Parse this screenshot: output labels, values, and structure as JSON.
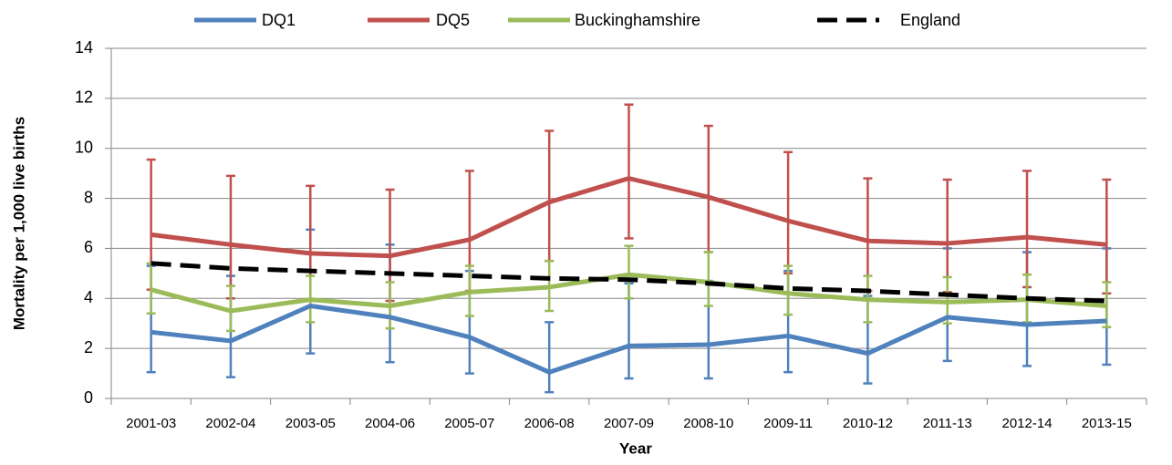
{
  "chart_data": {
    "type": "line",
    "y_label": "Mortality per 1,000 live births",
    "x_label": "Year",
    "categories": [
      "2001-03",
      "2002-04",
      "2003-05",
      "2004-06",
      "2005-07",
      "2006-08",
      "2007-09",
      "2008-10",
      "2009-11",
      "2010-12",
      "2011-13",
      "2012-14",
      "2013-15"
    ],
    "ylim": [
      0,
      14
    ],
    "yticks": [
      0,
      2,
      4,
      6,
      8,
      10,
      12,
      14
    ],
    "grid": true,
    "legend": "top",
    "series": [
      {
        "name": "DQ1",
        "color": "#4f81bd",
        "dashed": false,
        "values": [
          2.65,
          2.3,
          3.7,
          3.25,
          2.45,
          1.05,
          2.1,
          2.15,
          2.5,
          1.8,
          3.25,
          2.95,
          3.1
        ],
        "lower": [
          1.05,
          0.85,
          1.8,
          1.45,
          1.0,
          0.25,
          0.8,
          0.8,
          1.05,
          0.6,
          1.5,
          1.3,
          1.35
        ],
        "upper": [
          5.3,
          4.9,
          6.75,
          6.15,
          5.1,
          3.05,
          4.6,
          4.7,
          5.1,
          4.1,
          6.0,
          5.85,
          6.0
        ]
      },
      {
        "name": "DQ5",
        "color": "#c0504d",
        "dashed": false,
        "values": [
          6.55,
          6.15,
          5.8,
          5.7,
          6.35,
          7.85,
          8.8,
          8.05,
          7.1,
          6.3,
          6.2,
          6.45,
          6.15
        ],
        "lower": [
          4.35,
          4.0,
          3.9,
          3.9,
          4.3,
          5.5,
          6.4,
          5.85,
          5.0,
          4.3,
          4.25,
          4.45,
          4.2
        ],
        "upper": [
          9.55,
          8.9,
          8.5,
          8.35,
          9.1,
          10.7,
          11.75,
          10.9,
          9.85,
          8.8,
          8.75,
          9.1,
          8.75
        ]
      },
      {
        "name": "Buckinghamshire",
        "color": "#9bbb59",
        "dashed": false,
        "values": [
          4.35,
          3.5,
          3.95,
          3.7,
          4.25,
          4.45,
          4.95,
          4.65,
          4.2,
          3.95,
          3.85,
          3.95,
          3.7
        ],
        "lower": [
          3.4,
          2.7,
          3.05,
          2.8,
          3.3,
          3.5,
          4.0,
          3.7,
          3.35,
          3.05,
          3.0,
          3.05,
          2.85
        ],
        "upper": [
          5.4,
          4.5,
          4.9,
          4.65,
          5.3,
          5.5,
          6.1,
          5.85,
          5.3,
          4.9,
          4.85,
          4.95,
          4.65
        ]
      },
      {
        "name": "England",
        "color": "#000000",
        "dashed": true,
        "values": [
          5.4,
          5.2,
          5.1,
          5.0,
          4.9,
          4.8,
          4.75,
          4.6,
          4.4,
          4.3,
          4.15,
          4.0,
          3.9
        ]
      }
    ]
  }
}
